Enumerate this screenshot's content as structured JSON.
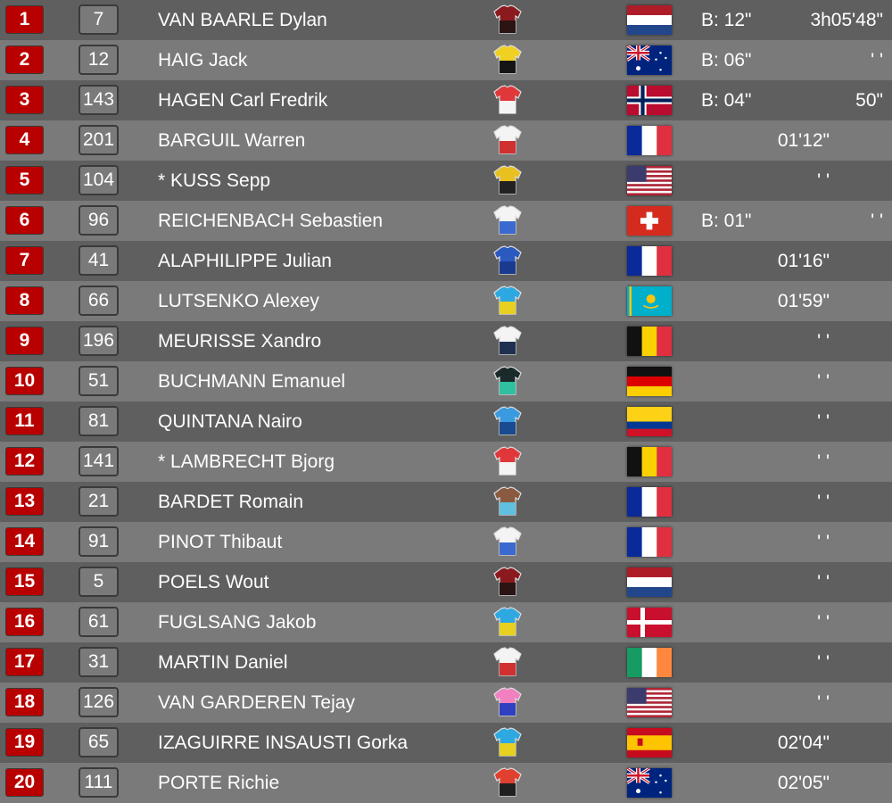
{
  "colors": {
    "row_dark": "#5f5f5f",
    "row_light": "#7a7a7a",
    "position_badge": "#b80000"
  },
  "riders": [
    {
      "pos": "1",
      "bib": "7",
      "name": "VAN BAARLE Dylan",
      "team_jersey": [
        "#8b1a1f",
        "#2a1414"
      ],
      "flag": "NL",
      "bonus": "B: 12\"",
      "time": "3h05'48\""
    },
    {
      "pos": "2",
      "bib": "12",
      "name": "HAIG Jack",
      "team_jersey": [
        "#f0d020",
        "#151515"
      ],
      "flag": "AU",
      "bonus": "B: 06\"",
      "time": "' '"
    },
    {
      "pos": "3",
      "bib": "143",
      "name": "HAGEN Carl Fredrik",
      "team_jersey": [
        "#e0383a",
        "#f4f4f4"
      ],
      "flag": "NO",
      "bonus": "B: 04\"",
      "time": "50\""
    },
    {
      "pos": "4",
      "bib": "201",
      "name": "BARGUIL Warren",
      "team_jersey": [
        "#f4f4f4",
        "#d03030"
      ],
      "flag": "FR",
      "bonus": "",
      "time": "01'12\""
    },
    {
      "pos": "5",
      "bib": "104",
      "name": "* KUSS Sepp",
      "team_jersey": [
        "#e8c020",
        "#222222"
      ],
      "flag": "US",
      "bonus": "",
      "time": "' '"
    },
    {
      "pos": "6",
      "bib": "96",
      "name": "REICHENBACH Sebastien",
      "team_jersey": [
        "#f4f4f4",
        "#3a6ad0"
      ],
      "flag": "CH",
      "bonus": "B: 01\"",
      "time": "' '"
    },
    {
      "pos": "7",
      "bib": "41",
      "name": "ALAPHILIPPE Julian",
      "team_jersey": [
        "#2a5ac0",
        "#1a3a90"
      ],
      "flag": "FR",
      "bonus": "",
      "time": "01'16\""
    },
    {
      "pos": "8",
      "bib": "66",
      "name": "LUTSENKO Alexey",
      "team_jersey": [
        "#2ea8e0",
        "#e8d020"
      ],
      "flag": "KZ",
      "bonus": "",
      "time": "01'59\""
    },
    {
      "pos": "9",
      "bib": "196",
      "name": "MEURISSE Xandro",
      "team_jersey": [
        "#f4f4f4",
        "#203050"
      ],
      "flag": "BE",
      "bonus": "",
      "time": "' '"
    },
    {
      "pos": "10",
      "bib": "51",
      "name": "BUCHMANN Emanuel",
      "team_jersey": [
        "#1a2a2a",
        "#30c0a0"
      ],
      "flag": "DE",
      "bonus": "",
      "time": "' '"
    },
    {
      "pos": "11",
      "bib": "81",
      "name": "QUINTANA Nairo",
      "team_jersey": [
        "#3a9ae0",
        "#1a4a90"
      ],
      "flag": "CO",
      "bonus": "",
      "time": "' '"
    },
    {
      "pos": "12",
      "bib": "141",
      "name": "* LAMBRECHT Bjorg",
      "team_jersey": [
        "#e0383a",
        "#f4f4f4"
      ],
      "flag": "BE",
      "bonus": "",
      "time": "' '"
    },
    {
      "pos": "13",
      "bib": "21",
      "name": "BARDET Romain",
      "team_jersey": [
        "#8a5a40",
        "#60c0e0"
      ],
      "flag": "FR",
      "bonus": "",
      "time": "' '"
    },
    {
      "pos": "14",
      "bib": "91",
      "name": "PINOT Thibaut",
      "team_jersey": [
        "#f4f4f4",
        "#3a6ad0"
      ],
      "flag": "FR",
      "bonus": "",
      "time": "' '"
    },
    {
      "pos": "15",
      "bib": "5",
      "name": "POELS Wout",
      "team_jersey": [
        "#8b1a1f",
        "#2a1414"
      ],
      "flag": "NL",
      "bonus": "",
      "time": "' '"
    },
    {
      "pos": "16",
      "bib": "61",
      "name": "FUGLSANG Jakob",
      "team_jersey": [
        "#2ea8e0",
        "#e8d020"
      ],
      "flag": "DK",
      "bonus": "",
      "time": "' '"
    },
    {
      "pos": "17",
      "bib": "31",
      "name": "MARTIN Daniel",
      "team_jersey": [
        "#f4f4f4",
        "#d03030"
      ],
      "flag": "IE",
      "bonus": "",
      "time": "' '"
    },
    {
      "pos": "18",
      "bib": "126",
      "name": "VAN GARDEREN Tejay",
      "team_jersey": [
        "#f080c0",
        "#3040c0"
      ],
      "flag": "US",
      "bonus": "",
      "time": "' '"
    },
    {
      "pos": "19",
      "bib": "65",
      "name": "IZAGUIRRE INSAUSTI Gorka",
      "team_jersey": [
        "#2ea8e0",
        "#e8d020"
      ],
      "flag": "ES",
      "bonus": "",
      "time": "02'04\""
    },
    {
      "pos": "20",
      "bib": "111",
      "name": "PORTE Richie",
      "team_jersey": [
        "#e04030",
        "#202020"
      ],
      "flag": "AU",
      "bonus": "",
      "time": "02'05\""
    }
  ]
}
